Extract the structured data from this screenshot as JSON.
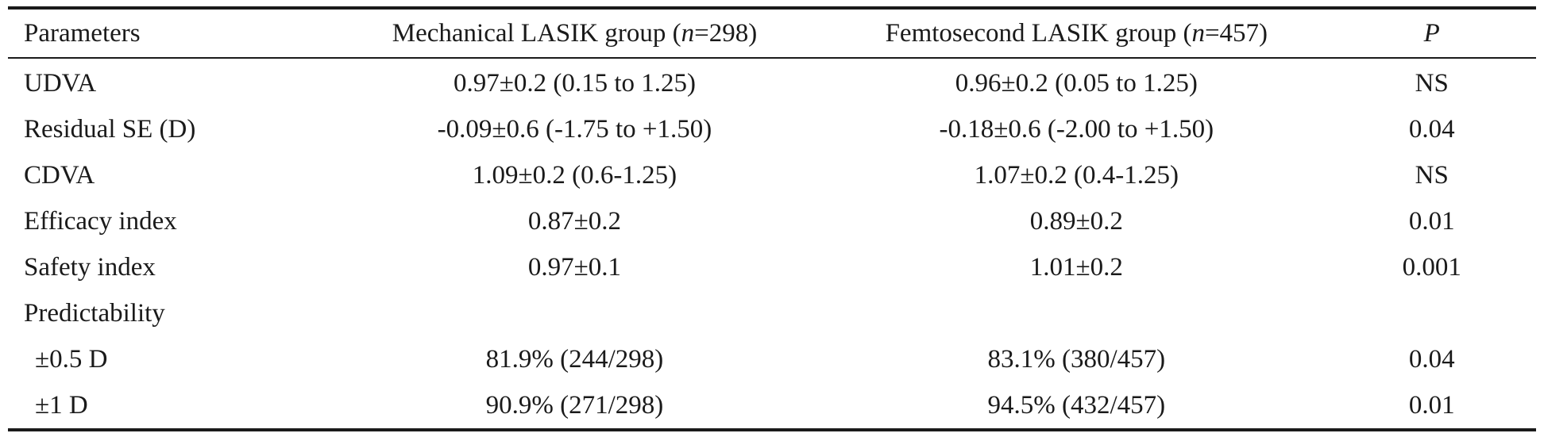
{
  "table": {
    "header": {
      "parameters": "Parameters",
      "mechanical_prefix": "Mechanical LASIK group (",
      "mechanical_n_var": "n",
      "mechanical_suffix": "=298)",
      "femtosecond_prefix": "Femtosecond LASIK group (",
      "femtosecond_n_var": "n",
      "femtosecond_suffix": "=457)",
      "p": "P"
    },
    "rows": [
      {
        "parameter": "UDVA",
        "mechanical": "0.97±0.2 (0.15 to 1.25)",
        "femtosecond": "0.96±0.2 (0.05 to 1.25)",
        "p": "NS"
      },
      {
        "parameter": "Residual SE (D)",
        "mechanical": "-0.09±0.6 (-1.75 to +1.50)",
        "femtosecond": "-0.18±0.6 (-2.00 to +1.50)",
        "p": "0.04"
      },
      {
        "parameter": "CDVA",
        "mechanical": "1.09±0.2 (0.6-1.25)",
        "femtosecond": "1.07±0.2 (0.4-1.25)",
        "p": "NS"
      },
      {
        "parameter": "Efficacy index",
        "mechanical": "0.87±0.2",
        "femtosecond": "0.89±0.2",
        "p": "0.01"
      },
      {
        "parameter": "Safety index",
        "mechanical": "0.97±0.1",
        "femtosecond": "1.01±0.2",
        "p": "0.001"
      },
      {
        "parameter": "Predictability",
        "mechanical": "",
        "femtosecond": "",
        "p": ""
      },
      {
        "parameter": "±0.5 D",
        "mechanical": "81.9% (244/298)",
        "femtosecond": "83.1% (380/457)",
        "p": "0.04"
      },
      {
        "parameter": "±1 D",
        "mechanical": "90.9% (271/298)",
        "femtosecond": "94.5% (432/457)",
        "p": "0.01"
      }
    ]
  }
}
